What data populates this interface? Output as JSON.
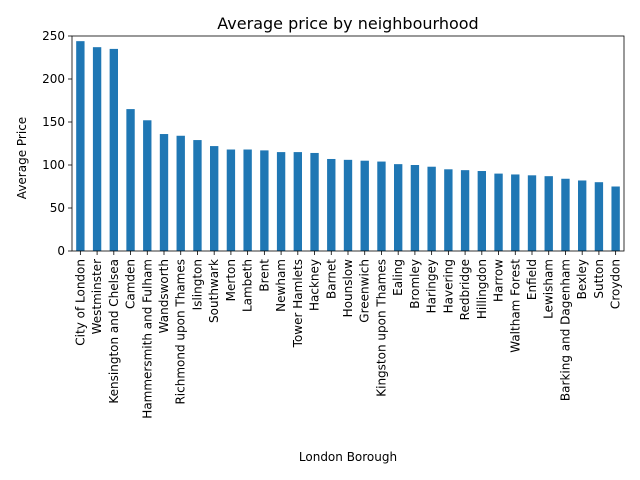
{
  "chart_data": {
    "type": "bar",
    "title": "Average price by neighbourhood",
    "xlabel": "London Borough",
    "ylabel": "Average Price",
    "ylim": [
      0,
      250
    ],
    "yticks": [
      0,
      50,
      100,
      150,
      200,
      250
    ],
    "grid": false,
    "bar_color": "#1f77b4",
    "categories": [
      "City of London",
      "Westminster",
      "Kensington and Chelsea",
      "Camden",
      "Hammersmith and Fulham",
      "Wandsworth",
      "Richmond upon Thames",
      "Islington",
      "Southwark",
      "Merton",
      "Lambeth",
      "Brent",
      "Newham",
      "Tower Hamlets",
      "Hackney",
      "Barnet",
      "Hounslow",
      "Greenwich",
      "Kingston upon Thames",
      "Ealing",
      "Bromley",
      "Haringey",
      "Havering",
      "Redbridge",
      "Hillingdon",
      "Harrow",
      "Waltham Forest",
      "Enfield",
      "Lewisham",
      "Barking and Dagenham",
      "Bexley",
      "Sutton",
      "Croydon"
    ],
    "values": [
      244,
      237,
      235,
      165,
      152,
      136,
      134,
      129,
      122,
      118,
      118,
      117,
      115,
      115,
      114,
      107,
      106,
      105,
      104,
      101,
      100,
      98,
      95,
      94,
      93,
      90,
      89,
      88,
      87,
      84,
      82,
      80,
      75
    ]
  }
}
